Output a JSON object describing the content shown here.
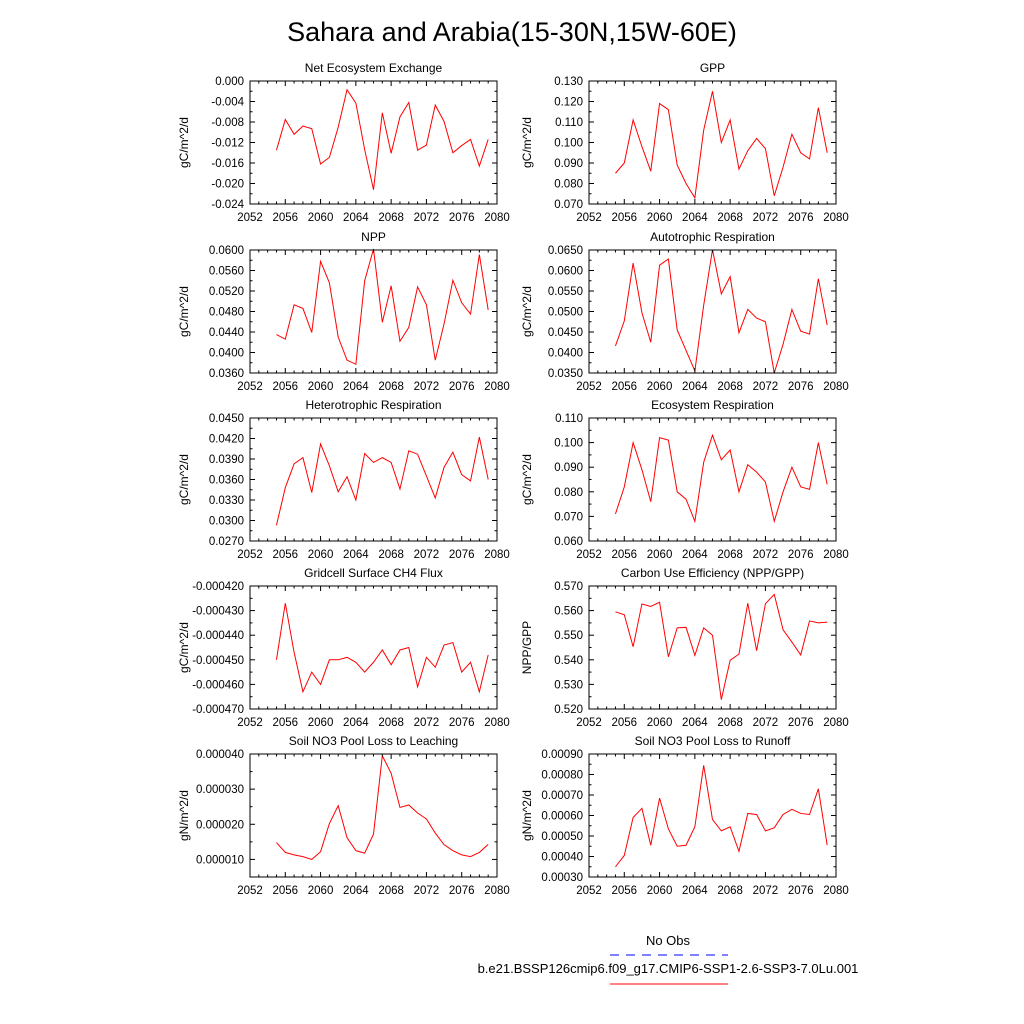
{
  "title": "Sahara and Arabia(15-30N,15W-60E)",
  "series_colors": {
    "model": "#ff0000",
    "obs": "#0000ff"
  },
  "legend": {
    "obs_label": "No Obs",
    "model_label": "b.e21.BSSP126cmip6.f09_g17.CMIP6-SSP1-2.6-SSP3-7.0Lu.001"
  },
  "x_axis": {
    "range": [
      2052,
      2080
    ],
    "ticks": [
      2052,
      2056,
      2060,
      2064,
      2068,
      2072,
      2076,
      2080
    ],
    "years": [
      2055,
      2056,
      2057,
      2058,
      2059,
      2060,
      2061,
      2062,
      2063,
      2064,
      2065,
      2066,
      2067,
      2068,
      2069,
      2070,
      2071,
      2072,
      2073,
      2074,
      2075,
      2076,
      2077,
      2078,
      2079
    ]
  },
  "chart_data": [
    {
      "type": "line",
      "title": "Net Ecosystem Exchange",
      "ylabel": "gC/m^2/d",
      "ylim": [
        -0.024,
        0.0
      ],
      "yticks": [
        -0.024,
        -0.02,
        -0.016,
        -0.012,
        -0.008,
        -0.004,
        0.0
      ],
      "ytick_labels": [
        "-0.024",
        "-0.020",
        "-0.016",
        "-0.012",
        "-0.008",
        "-0.004",
        "0.000"
      ],
      "values": [
        -0.0135,
        -0.0075,
        -0.0104,
        -0.0088,
        -0.0093,
        -0.0162,
        -0.0149,
        -0.009,
        -0.0017,
        -0.0043,
        -0.0134,
        -0.0212,
        -0.0062,
        -0.0141,
        -0.007,
        -0.0042,
        -0.0135,
        -0.0125,
        -0.0047,
        -0.0079,
        -0.014,
        -0.0126,
        -0.0114,
        -0.0166,
        -0.0114
      ]
    },
    {
      "type": "line",
      "title": "GPP",
      "ylabel": "gC/m^2/d",
      "ylim": [
        0.07,
        0.13
      ],
      "yticks": [
        0.07,
        0.08,
        0.09,
        0.1,
        0.11,
        0.12,
        0.13
      ],
      "ytick_labels": [
        "0.070",
        "0.080",
        "0.090",
        "0.100",
        "0.110",
        "0.120",
        "0.130"
      ],
      "values": [
        0.085,
        0.09,
        0.111,
        0.098,
        0.086,
        0.119,
        0.116,
        0.089,
        0.08,
        0.073,
        0.106,
        0.125,
        0.1,
        0.111,
        0.087,
        0.096,
        0.102,
        0.097,
        0.074,
        0.088,
        0.104,
        0.095,
        0.092,
        0.117,
        0.095
      ]
    },
    {
      "type": "line",
      "title": "NPP",
      "ylabel": "gC/m^2/d",
      "ylim": [
        0.036,
        0.06
      ],
      "yticks": [
        0.036,
        0.04,
        0.044,
        0.048,
        0.052,
        0.056,
        0.06
      ],
      "ytick_labels": [
        "0.0360",
        "0.0400",
        "0.0440",
        "0.0480",
        "0.0520",
        "0.0560",
        "0.0600"
      ],
      "values": [
        0.0435,
        0.0426,
        0.0493,
        0.0486,
        0.0439,
        0.0578,
        0.0536,
        0.043,
        0.0385,
        0.0377,
        0.054,
        0.0602,
        0.0459,
        0.053,
        0.0422,
        0.0449,
        0.0528,
        0.0493,
        0.0385,
        0.0456,
        0.0541,
        0.0497,
        0.0475,
        0.0591,
        0.0483
      ]
    },
    {
      "type": "line",
      "title": "Autotrophic Respiration",
      "ylabel": "gC/m^2/d",
      "ylim": [
        0.035,
        0.065
      ],
      "yticks": [
        0.035,
        0.04,
        0.045,
        0.05,
        0.055,
        0.06,
        0.065
      ],
      "ytick_labels": [
        "0.0350",
        "0.0400",
        "0.0450",
        "0.0500",
        "0.0550",
        "0.0600",
        "0.0650"
      ],
      "values": [
        0.0416,
        0.0477,
        0.0618,
        0.0497,
        0.0425,
        0.0613,
        0.0628,
        0.0455,
        0.0405,
        0.0355,
        0.0515,
        0.0651,
        0.0543,
        0.0585,
        0.0448,
        0.0505,
        0.0484,
        0.0475,
        0.035,
        0.042,
        0.0505,
        0.0452,
        0.0445,
        0.058,
        0.0467
      ]
    },
    {
      "type": "line",
      "title": "Heterotrophic Respiration",
      "ylabel": "gC/m^2/d",
      "ylim": [
        0.027,
        0.045
      ],
      "yticks": [
        0.027,
        0.03,
        0.033,
        0.036,
        0.039,
        0.042,
        0.045
      ],
      "ytick_labels": [
        "0.0270",
        "0.0300",
        "0.0330",
        "0.0360",
        "0.0390",
        "0.0420",
        "0.0450"
      ],
      "values": [
        0.0293,
        0.0348,
        0.0383,
        0.0392,
        0.0341,
        0.0412,
        0.038,
        0.0342,
        0.0364,
        0.033,
        0.0398,
        0.0385,
        0.0392,
        0.0385,
        0.0346,
        0.0402,
        0.0397,
        0.0365,
        0.0333,
        0.0378,
        0.04,
        0.0367,
        0.0358,
        0.0422,
        0.036
      ]
    },
    {
      "type": "line",
      "title": "Ecosystem Respiration",
      "ylabel": "gC/m^2/d",
      "ylim": [
        0.06,
        0.11
      ],
      "yticks": [
        0.06,
        0.07,
        0.08,
        0.09,
        0.1,
        0.11
      ],
      "ytick_labels": [
        "0.060",
        "0.070",
        "0.080",
        "0.090",
        "0.100",
        "0.110"
      ],
      "values": [
        0.071,
        0.082,
        0.1,
        0.089,
        0.076,
        0.102,
        0.101,
        0.08,
        0.077,
        0.068,
        0.092,
        0.103,
        0.093,
        0.097,
        0.08,
        0.091,
        0.088,
        0.084,
        0.068,
        0.08,
        0.09,
        0.082,
        0.081,
        0.1,
        0.083
      ]
    },
    {
      "type": "line",
      "title": "Gridcell Surface CH4 Flux",
      "ylabel": "gC/m^2/d",
      "ylim": [
        -0.00047,
        -0.00042
      ],
      "yticks": [
        -0.00047,
        -0.00046,
        -0.00045,
        -0.00044,
        -0.00043,
        -0.00042
      ],
      "ytick_labels": [
        "-0.000470",
        "-0.000460",
        "-0.000450",
        "-0.000440",
        "-0.000430",
        "-0.000420"
      ],
      "values": [
        -0.00045,
        -0.000427,
        -0.000447,
        -0.000463,
        -0.000455,
        -0.00046,
        -0.00045,
        -0.00045,
        -0.000449,
        -0.000451,
        -0.000455,
        -0.000451,
        -0.000446,
        -0.000452,
        -0.000446,
        -0.000445,
        -0.000461,
        -0.000449,
        -0.000453,
        -0.000444,
        -0.000443,
        -0.000455,
        -0.000451,
        -0.000463,
        -0.000448
      ]
    },
    {
      "type": "line",
      "title": "Carbon Use Efficiency (NPP/GPP)",
      "ylabel": "NPP/GPP",
      "ylim": [
        0.52,
        0.57
      ],
      "yticks": [
        0.52,
        0.53,
        0.54,
        0.55,
        0.56,
        0.57
      ],
      "ytick_labels": [
        "0.520",
        "0.530",
        "0.540",
        "0.550",
        "0.560",
        "0.570"
      ],
      "values": [
        0.5595,
        0.5583,
        0.5453,
        0.5627,
        0.5617,
        0.5634,
        0.5412,
        0.553,
        0.5532,
        0.5418,
        0.553,
        0.55,
        0.5238,
        0.5398,
        0.5423,
        0.563,
        0.5437,
        0.5628,
        0.5666,
        0.5522,
        0.5472,
        0.542,
        0.5558,
        0.555,
        0.5553
      ]
    },
    {
      "type": "line",
      "title": "Soil NO3 Pool Loss to Leaching",
      "ylabel": "gN/m^2/d",
      "ylim": [
        5e-06,
        4e-05
      ],
      "yticks": [
        1e-05,
        2e-05,
        3e-05,
        4e-05
      ],
      "ytick_labels": [
        "0.000010",
        "0.000020",
        "0.000030",
        "0.000040"
      ],
      "values": [
        1.48e-05,
        1.2e-05,
        1.13e-05,
        1.08e-05,
        1e-05,
        1.22e-05,
        2.02e-05,
        2.53e-05,
        1.62e-05,
        1.25e-05,
        1.18e-05,
        1.72e-05,
        3.95e-05,
        3.45e-05,
        2.48e-05,
        2.55e-05,
        2.32e-05,
        2.15e-05,
        1.75e-05,
        1.42e-05,
        1.25e-05,
        1.13e-05,
        1.08e-05,
        1.2e-05,
        1.43e-05
      ]
    },
    {
      "type": "line",
      "title": "Soil NO3 Pool Loss to Runoff",
      "ylabel": "gN/m^2/d",
      "ylim": [
        0.0003,
        0.0009
      ],
      "yticks": [
        0.0003,
        0.0004,
        0.0005,
        0.0006,
        0.0007,
        0.0008,
        0.0009
      ],
      "ytick_labels": [
        "0.00030",
        "0.00040",
        "0.00050",
        "0.00060",
        "0.00070",
        "0.00080",
        "0.00090"
      ],
      "values": [
        0.00035,
        0.000405,
        0.00059,
        0.000635,
        0.000455,
        0.000685,
        0.000535,
        0.00045,
        0.000455,
        0.000545,
        0.000845,
        0.00058,
        0.000525,
        0.000545,
        0.000425,
        0.00061,
        0.000605,
        0.000525,
        0.00054,
        0.000605,
        0.00063,
        0.00061,
        0.000605,
        0.00073,
        0.000455
      ]
    }
  ]
}
